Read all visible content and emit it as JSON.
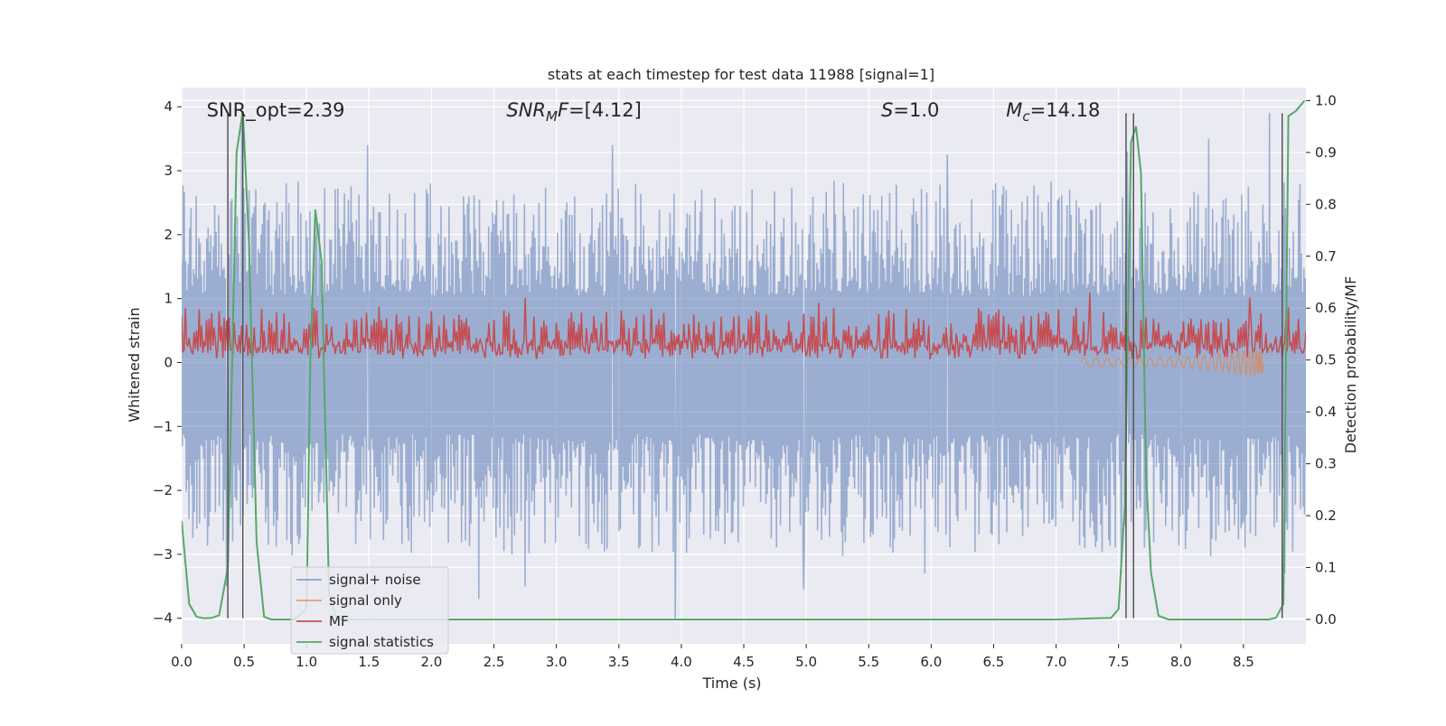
{
  "chart_data": {
    "type": "line",
    "title": "stats at each timestep for test data 11988 [signal=1]",
    "xlabel": "Time (s)",
    "ylabel": "Whitened strain",
    "ylabel_right": "Detection probability/MF",
    "xlim": [
      0.0,
      9.0
    ],
    "ylim": [
      -4.4,
      4.3
    ],
    "ylim_right": [
      -0.047,
      1.025
    ],
    "x_ticks": [
      0.0,
      0.5,
      1.0,
      1.5,
      2.0,
      2.5,
      3.0,
      3.5,
      4.0,
      4.5,
      5.0,
      5.5,
      6.0,
      6.5,
      7.0,
      7.5,
      8.0,
      8.5
    ],
    "x_tick_labels": [
      "0.0",
      "0.5",
      "1.0",
      "1.5",
      "2.0",
      "2.5",
      "3.0",
      "3.5",
      "4.0",
      "4.5",
      "5.0",
      "5.5",
      "6.0",
      "6.5",
      "7.0",
      "7.5",
      "8.0",
      "8.5"
    ],
    "y_ticks": [
      -4,
      -3,
      -2,
      -1,
      0,
      1,
      2,
      3,
      4
    ],
    "y_tick_labels": [
      "−4",
      "−3",
      "−2",
      "−1",
      "0",
      "1",
      "2",
      "3",
      "4"
    ],
    "y_ticks_right": [
      0.0,
      0.1,
      0.2,
      0.3,
      0.4,
      0.5,
      0.6,
      0.7,
      0.8,
      0.9,
      1.0
    ],
    "y_tick_labels_right": [
      "0.0",
      "0.1",
      "0.2",
      "0.3",
      "0.4",
      "0.5",
      "0.6",
      "0.7",
      "0.8",
      "0.9",
      "1.0"
    ],
    "grid": true,
    "legend_position": "lower-left",
    "annotations": [
      {
        "text": "SNR_opt=2.39",
        "x": 0.2,
        "y": 3.95
      },
      {
        "text": "SNR_MF=[4.12]",
        "x": 2.6,
        "y": 3.95
      },
      {
        "text": "S=1.0",
        "x": 5.6,
        "y": 3.95
      },
      {
        "text": "M_c=14.18",
        "x": 6.6,
        "y": 3.95
      }
    ],
    "vertical_lines": {
      "color": "#555555",
      "x": [
        0.37,
        0.49,
        7.56,
        7.62,
        8.81
      ],
      "y_top": 3.9,
      "y_bottom": -4.0
    },
    "series": [
      {
        "name": "signal+ noise",
        "color": "#4c72b0",
        "axis": "left",
        "style": "noise band",
        "band": {
          "upper_typical": 1.5,
          "lower_typical": -1.6,
          "x_start": 0.0,
          "x_end": 9.0
        },
        "spikes": [
          {
            "x": 0.48,
            "y": 3.9
          },
          {
            "x": 1.49,
            "y": 3.4
          },
          {
            "x": 3.45,
            "y": 3.4
          },
          {
            "x": 6.13,
            "y": 3.25
          },
          {
            "x": 7.57,
            "y": 3.3
          },
          {
            "x": 8.22,
            "y": 3.5
          },
          {
            "x": 8.71,
            "y": 3.9
          },
          {
            "x": 8.83,
            "y": 3.9
          },
          {
            "x": 0.36,
            "y": -3.5
          },
          {
            "x": 2.38,
            "y": -3.7
          },
          {
            "x": 2.75,
            "y": -3.5
          },
          {
            "x": 3.95,
            "y": -4.0
          },
          {
            "x": 4.98,
            "y": -3.55
          },
          {
            "x": 5.95,
            "y": -3.3
          },
          {
            "x": 7.52,
            "y": -3.3
          },
          {
            "x": 8.83,
            "y": -3.3
          }
        ]
      },
      {
        "name": "signal only",
        "color": "#dd8452",
        "axis": "left",
        "style": "chirp",
        "x_start": 7.2,
        "x_merger": 8.65,
        "peak_amplitude": 0.45
      },
      {
        "name": "MF",
        "color": "#c44e52",
        "axis": "right",
        "style": "noisy line",
        "baseline": 0.52,
        "typical_peak": 0.58,
        "spikes": [
          {
            "x": 0.03,
            "y": 0.6
          },
          {
            "x": 1.06,
            "y": 0.6
          },
          {
            "x": 2.75,
            "y": 0.62
          },
          {
            "x": 5.1,
            "y": 0.61
          },
          {
            "x": 6.38,
            "y": 0.6
          },
          {
            "x": 7.27,
            "y": 0.63
          },
          {
            "x": 8.55,
            "y": 0.62
          }
        ]
      },
      {
        "name": "signal statistics",
        "color": "#55a868",
        "axis": "right",
        "x": [
          0.0,
          0.06,
          0.12,
          0.18,
          0.24,
          0.3,
          0.37,
          0.44,
          0.49,
          0.54,
          0.6,
          0.66,
          0.72,
          0.9,
          1.0,
          1.03,
          1.07,
          1.12,
          1.18,
          1.24,
          1.5,
          2.0,
          3.0,
          4.0,
          5.0,
          6.0,
          7.0,
          7.44,
          7.5,
          7.55,
          7.6,
          7.64,
          7.68,
          7.72,
          7.76,
          7.82,
          7.9,
          8.0,
          8.5,
          8.7,
          8.76,
          8.82,
          8.86,
          8.92,
          8.99
        ],
        "values": [
          0.19,
          0.03,
          0.005,
          0.002,
          0.003,
          0.008,
          0.1,
          0.9,
          0.98,
          0.72,
          0.15,
          0.005,
          0.0,
          0.0,
          0.02,
          0.5,
          0.79,
          0.69,
          0.05,
          0.0,
          0.0,
          0.0,
          0.0,
          0.0,
          0.0,
          0.0,
          0.0,
          0.003,
          0.02,
          0.22,
          0.92,
          0.95,
          0.86,
          0.28,
          0.09,
          0.007,
          0.0,
          0.0,
          0.0,
          0.0,
          0.003,
          0.03,
          0.97,
          0.98,
          1.0
        ]
      }
    ]
  }
}
